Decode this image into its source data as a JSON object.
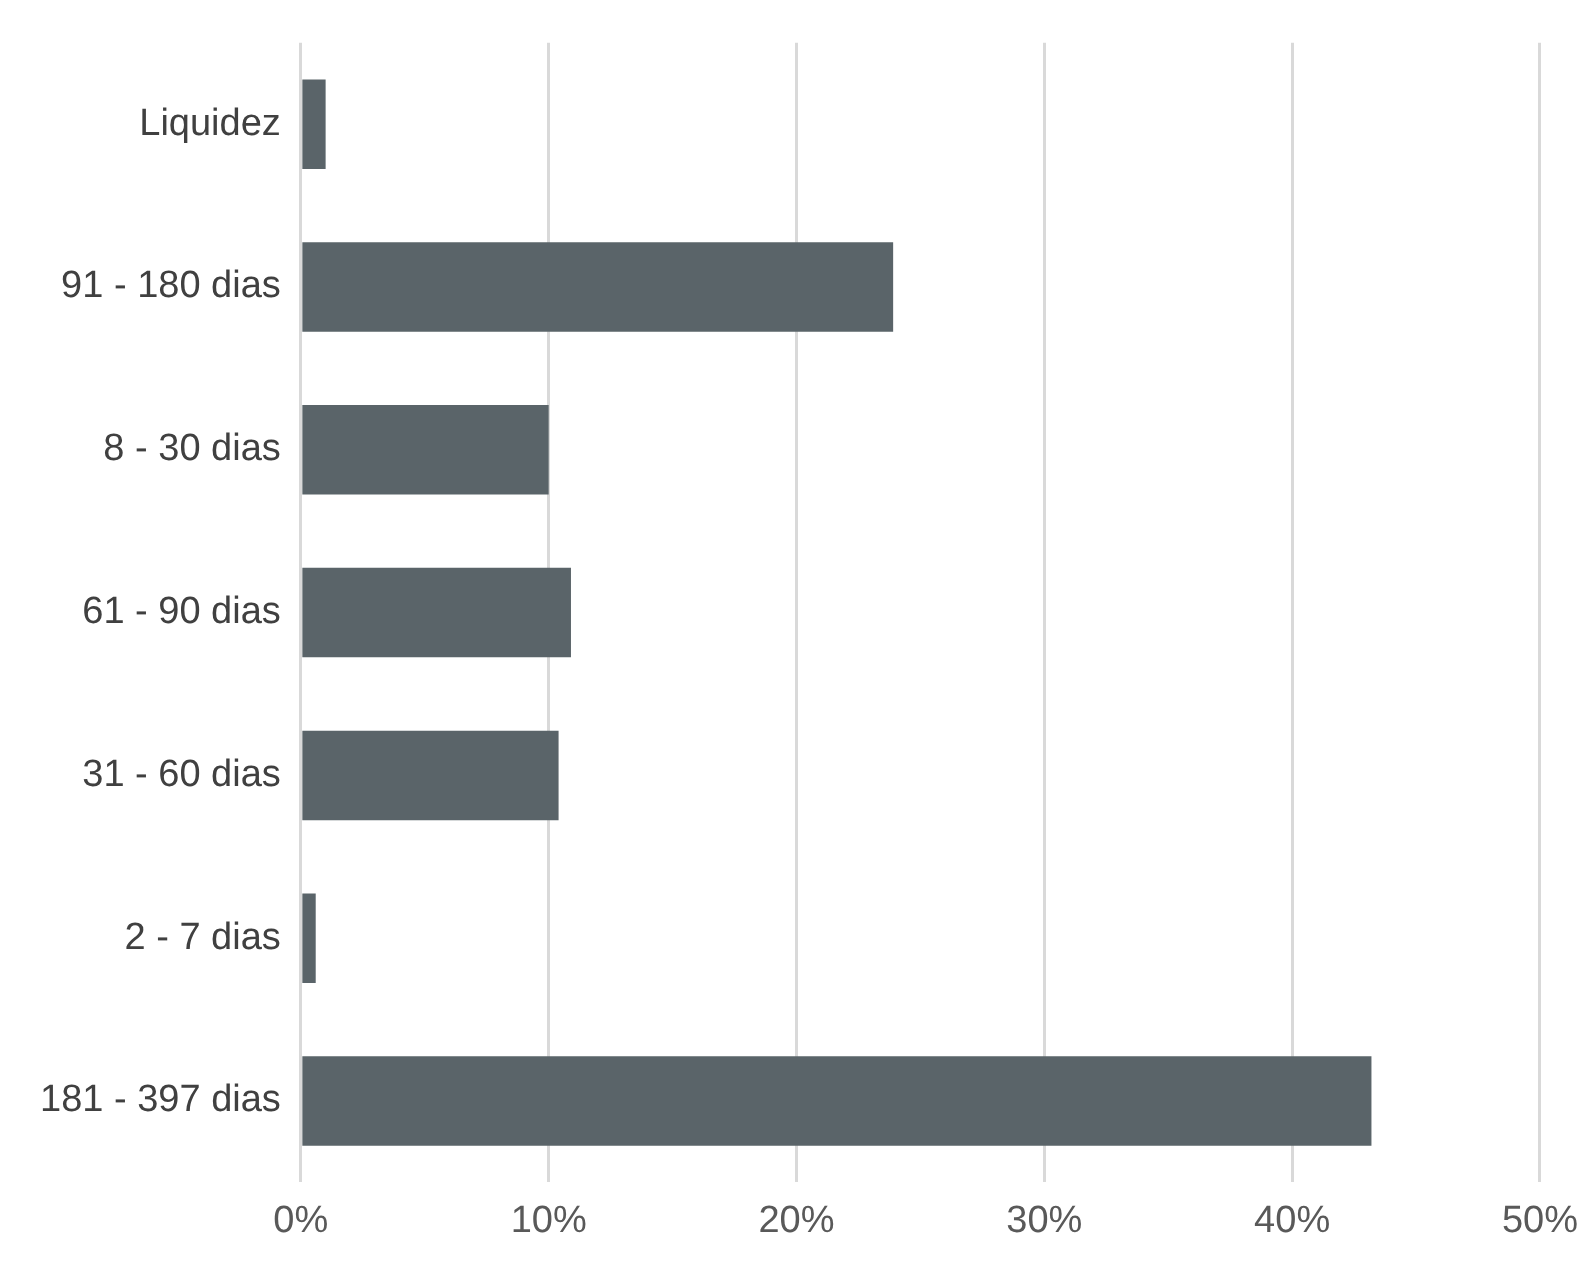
{
  "chart_data": {
    "type": "bar",
    "orientation": "horizontal",
    "categories": [
      "Liquidez",
      "91 - 180 dias",
      "8 - 30 dias",
      "61 - 90 dias",
      "31 - 60 dias",
      "2 - 7 dias",
      "181 - 397 dias"
    ],
    "values": [
      1.0,
      23.9,
      10.0,
      10.9,
      10.4,
      0.6,
      43.2
    ],
    "color": "#5a6469",
    "xlim": [
      0,
      50
    ],
    "xticks": [
      {
        "value": 0,
        "label": "0%"
      },
      {
        "value": 10,
        "label": "10%"
      },
      {
        "value": 20,
        "label": "20%"
      },
      {
        "value": 30,
        "label": "30%"
      },
      {
        "value": 40,
        "label": "40%"
      },
      {
        "value": 50,
        "label": "50%"
      }
    ],
    "grid": "x",
    "legend": false
  }
}
